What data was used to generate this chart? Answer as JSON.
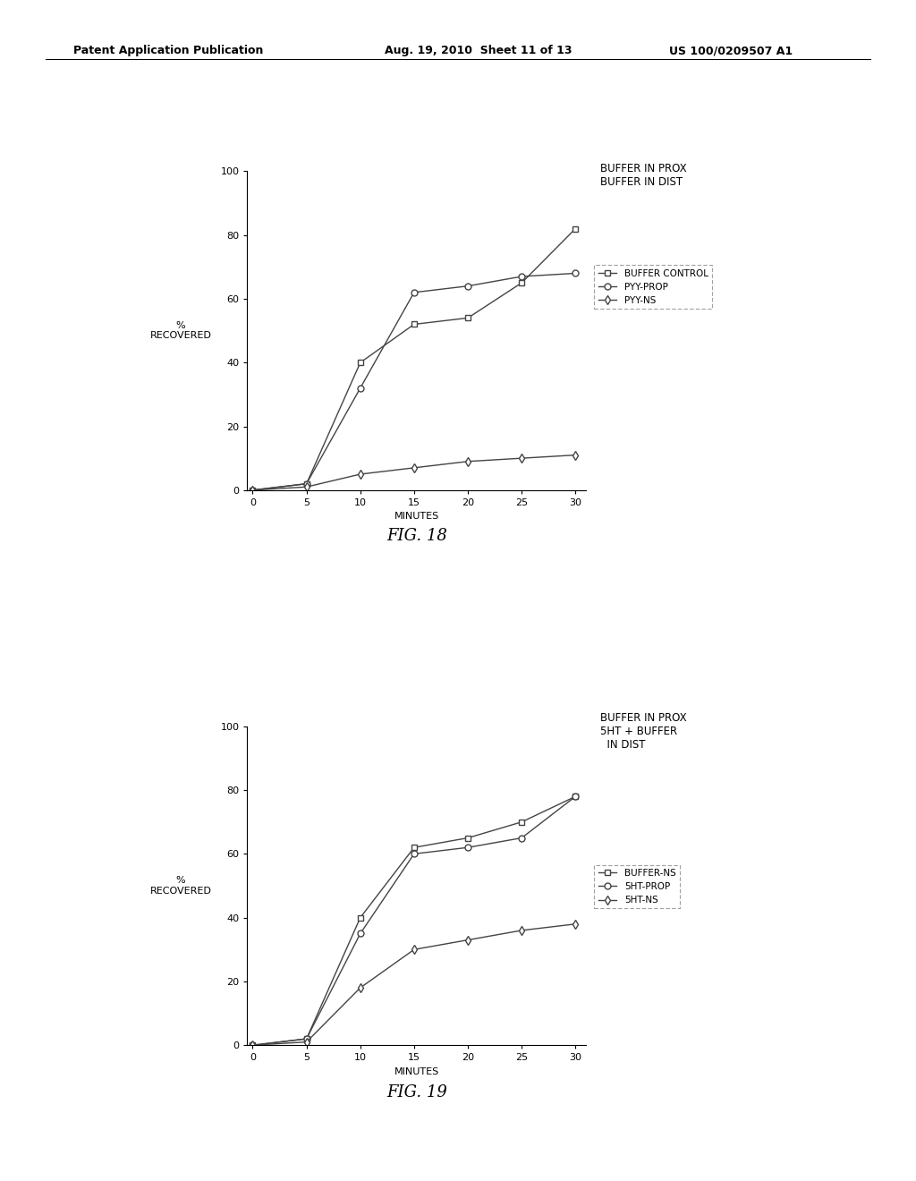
{
  "background_color": "#ffffff",
  "header_left": "Patent Application Publication",
  "header_mid": "Aug. 19, 2010  Sheet 11 of 13",
  "header_right": "US 100/0209507 A1",
  "fig18": {
    "x": [
      0,
      5,
      10,
      15,
      20,
      25,
      30
    ],
    "buffer_control": [
      0,
      2,
      40,
      52,
      54,
      65,
      82
    ],
    "pyy_prop": [
      0,
      2,
      32,
      62,
      64,
      67,
      68
    ],
    "pyy_ns": [
      0,
      1,
      5,
      7,
      9,
      10,
      11
    ],
    "xlabel": "MINUTES",
    "ylabel": "%\nRECOVERED",
    "ylim": [
      0,
      100
    ],
    "yticks": [
      0,
      20,
      40,
      60,
      80,
      100
    ],
    "xticks": [
      0,
      5,
      10,
      15,
      20,
      25,
      30
    ],
    "annotation_title": "BUFFER IN PROX\nBUFFER IN DIST",
    "legend_labels": [
      "BUFFER CONTROL",
      "PYY-PROP",
      "PYY-NS"
    ],
    "fig_label": "FIG. 18"
  },
  "fig19": {
    "x": [
      0,
      5,
      10,
      15,
      20,
      25,
      30
    ],
    "buffer_ns": [
      0,
      2,
      40,
      62,
      65,
      70,
      78
    ],
    "sht_prop": [
      0,
      2,
      35,
      60,
      62,
      65,
      78
    ],
    "sht_ns": [
      0,
      1,
      18,
      30,
      33,
      36,
      38
    ],
    "xlabel": "MINUTES",
    "ylabel": "%\nRECOVERED",
    "ylim": [
      0,
      100
    ],
    "yticks": [
      0,
      20,
      40,
      60,
      80,
      100
    ],
    "xticks": [
      0,
      5,
      10,
      15,
      20,
      25,
      30
    ],
    "annotation_title": "BUFFER IN PROX\n5HT + BUFFER\n  IN DIST",
    "legend_labels": [
      "BUFFER-NS",
      "5HT-PROP",
      "5HT-NS"
    ],
    "fig_label": "FIG. 19"
  },
  "line_color": "#444444",
  "marker_size": 5,
  "font_size_label": 8,
  "font_size_tick": 8,
  "font_size_legend": 7.5,
  "font_size_annotation": 8.5,
  "font_size_fig_label": 13,
  "font_size_header": 9
}
